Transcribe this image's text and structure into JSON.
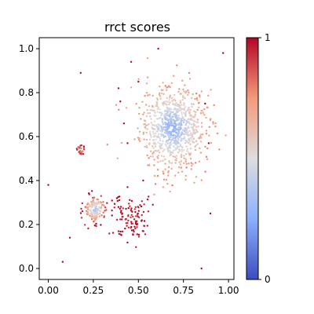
{
  "chart_data": {
    "type": "scatter",
    "title": "rrct scores",
    "xlabel": "",
    "ylabel": "",
    "xlim": [
      -0.05,
      1.03
    ],
    "ylim": [
      -0.05,
      1.05
    ],
    "x_ticks": [
      "0.00",
      "0.25",
      "0.50",
      "0.75",
      "1.00"
    ],
    "y_ticks": [
      "0.0",
      "0.2",
      "0.4",
      "0.6",
      "0.8",
      "1.0"
    ],
    "grid": false,
    "colormap": "coolwarm",
    "colorbar": {
      "min": 0,
      "max": 1,
      "ticks": [
        "0",
        "1"
      ]
    },
    "clusters": [
      {
        "center": [
          0.69,
          0.64
        ],
        "spread": 0.09,
        "score_center": 0.25,
        "score_edge": 0.75
      },
      {
        "center": [
          0.26,
          0.27
        ],
        "spread": 0.03,
        "score_center": 0.3,
        "score_edge": 0.95
      },
      {
        "center": [
          0.46,
          0.23
        ],
        "spread": 0.05,
        "score_center": 0.95,
        "score_edge": 1.0
      },
      {
        "center": [
          0.18,
          0.54
        ],
        "spread": 0.012,
        "score_center": 0.75,
        "score_edge": 0.95
      }
    ],
    "outliers": [
      {
        "x": 0.0,
        "y": 0.38,
        "score": 1.0
      },
      {
        "x": 0.08,
        "y": 0.03,
        "score": 1.0
      },
      {
        "x": 0.12,
        "y": 0.14,
        "score": 1.0
      },
      {
        "x": 0.18,
        "y": 0.89,
        "score": 1.0
      },
      {
        "x": 0.39,
        "y": 0.82,
        "score": 1.0
      },
      {
        "x": 0.46,
        "y": 0.94,
        "score": 1.0
      },
      {
        "x": 0.61,
        "y": 1.0,
        "score": 1.0
      },
      {
        "x": 0.42,
        "y": 0.66,
        "score": 1.0
      },
      {
        "x": 0.4,
        "y": 0.76,
        "score": 1.0
      },
      {
        "x": 0.44,
        "y": 0.57,
        "score": 1.0
      },
      {
        "x": 0.5,
        "y": 0.85,
        "score": 1.0
      },
      {
        "x": 0.87,
        "y": 0.75,
        "score": 1.0
      },
      {
        "x": 0.97,
        "y": 0.98,
        "score": 1.0
      },
      {
        "x": 0.9,
        "y": 0.25,
        "score": 1.0
      },
      {
        "x": 0.85,
        "y": 0.0,
        "score": 1.0
      },
      {
        "x": 0.89,
        "y": 0.57,
        "score": 1.0
      },
      {
        "x": 0.44,
        "y": 0.37,
        "score": 1.0
      },
      {
        "x": 0.58,
        "y": 0.29,
        "score": 1.0
      }
    ]
  }
}
